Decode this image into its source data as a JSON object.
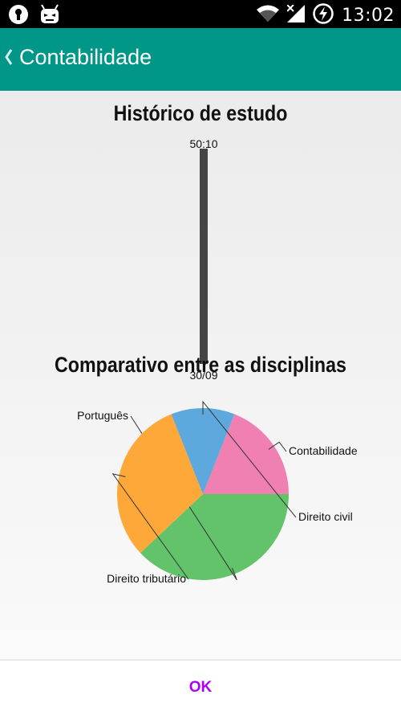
{
  "status_bar": {
    "time": "13:02",
    "left_icons": [
      "keyhole-icon",
      "robot-icon"
    ],
    "right_icons": [
      "wifi-icon",
      "signal-icon",
      "battery-charging-icon"
    ]
  },
  "app_bar": {
    "title": "Contabilidade",
    "back_icon": "chevron-left-icon"
  },
  "history_chart": {
    "title": "Histórico de estudo"
  },
  "comparison_chart": {
    "title": "Comparativo entre as disciplinas"
  },
  "footer": {
    "ok_label": "OK"
  },
  "chart_data": [
    {
      "type": "bar",
      "title": "Histórico de estudo",
      "categories": [
        "30/09"
      ],
      "values": [
        "50:10"
      ],
      "bar_color": "#454545"
    },
    {
      "type": "pie",
      "title": "Comparativo entre as disciplinas",
      "slices": [
        {
          "label": "Contabilidade",
          "value": 19,
          "color": "#f07fb2"
        },
        {
          "label": "Português",
          "value": 38,
          "color": "#62c36b"
        },
        {
          "label": "Direito tributário",
          "value": 31,
          "color": "#fea83a"
        },
        {
          "label": "Direito civil",
          "value": 12,
          "color": "#5da8dc"
        }
      ]
    }
  ]
}
